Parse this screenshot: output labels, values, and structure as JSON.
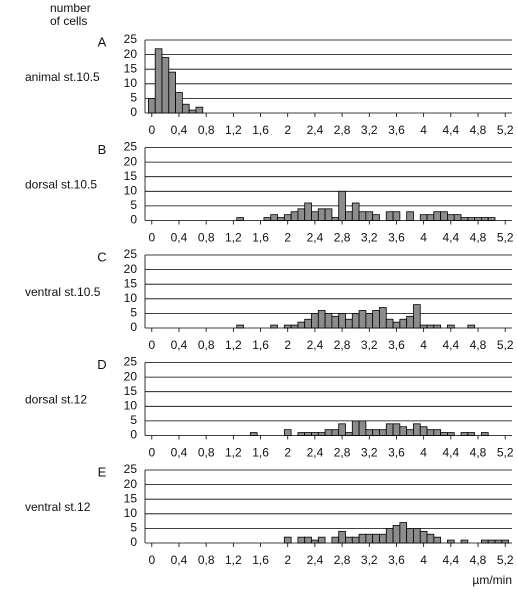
{
  "chart_data": [
    {
      "type": "bar",
      "panel": "A",
      "label": "animal st.10.5",
      "ylabel": "number of cells",
      "color": "#8c8c8c",
      "grid": true,
      "x": [
        0,
        0.1,
        0.2,
        0.3,
        0.4,
        0.5,
        0.6,
        0.7
      ],
      "values": [
        5,
        22,
        19,
        14,
        7,
        3,
        1,
        2
      ],
      "xlim": [
        -0.1,
        5.3
      ],
      "xticks": [
        0,
        {
          "value": 0.4,
          "label": "0,4"
        },
        {
          "value": 0.8,
          "label": "0,8"
        },
        {
          "value": 1.2,
          "label": "1,2"
        },
        {
          "value": 1.6,
          "label": "1,6"
        },
        2,
        {
          "value": 2.4,
          "label": "2,4"
        },
        {
          "value": 2.8,
          "label": "2,8"
        },
        {
          "value": 3.2,
          "label": "3,2"
        },
        {
          "value": 3.6,
          "label": "3,6"
        },
        4,
        {
          "value": 4.4,
          "label": "4,4"
        },
        {
          "value": 4.8,
          "label": "4,8"
        },
        {
          "value": 5.2,
          "label": "5,2"
        }
      ],
      "ylim": [
        0,
        25
      ],
      "yticks": [
        0,
        5,
        10,
        15,
        20,
        25
      ]
    },
    {
      "type": "bar",
      "panel": "B",
      "label": "dorsal st.10.5",
      "color": "#8c8c8c",
      "grid": true,
      "x": [
        1.3,
        1.7,
        1.8,
        1.9,
        2.0,
        2.1,
        2.2,
        2.3,
        2.4,
        2.5,
        2.6,
        2.7,
        2.8,
        2.9,
        3.0,
        3.1,
        3.2,
        3.3,
        3.5,
        3.6,
        3.8,
        4.0,
        4.1,
        4.2,
        4.3,
        4.4,
        4.5,
        4.6,
        4.7,
        4.8,
        4.9,
        5.0
      ],
      "values": [
        1,
        1,
        2,
        1,
        2,
        3,
        4,
        6,
        3,
        4,
        4,
        1,
        10,
        3,
        6,
        3,
        3,
        2,
        3,
        3,
        3,
        2,
        2,
        3,
        3,
        2,
        2,
        1,
        1,
        1,
        1,
        1
      ],
      "xlim": [
        -0.1,
        5.3
      ],
      "xticks": [
        0,
        {
          "value": 0.4,
          "label": "0,4"
        },
        {
          "value": 0.8,
          "label": "0,8"
        },
        {
          "value": 1.2,
          "label": "1,2"
        },
        {
          "value": 1.6,
          "label": "1,6"
        },
        2,
        {
          "value": 2.4,
          "label": "2,4"
        },
        {
          "value": 2.8,
          "label": "2,8"
        },
        {
          "value": 3.2,
          "label": "3,2"
        },
        {
          "value": 3.6,
          "label": "3,6"
        },
        4,
        {
          "value": 4.4,
          "label": "4,4"
        },
        {
          "value": 4.8,
          "label": "4,8"
        },
        {
          "value": 5.2,
          "label": "5,2"
        }
      ],
      "ylim": [
        0,
        25
      ],
      "yticks": [
        0,
        5,
        10,
        15,
        20,
        25
      ]
    },
    {
      "type": "bar",
      "panel": "C",
      "label": "ventral st.10.5",
      "color": "#8c8c8c",
      "grid": true,
      "x": [
        1.3,
        1.8,
        2.0,
        2.1,
        2.2,
        2.3,
        2.4,
        2.5,
        2.6,
        2.7,
        2.8,
        2.9,
        3.0,
        3.1,
        3.2,
        3.3,
        3.4,
        3.5,
        3.6,
        3.7,
        3.8,
        3.9,
        4.0,
        4.1,
        4.2,
        4.4,
        4.7
      ],
      "values": [
        1,
        1,
        1,
        1,
        2,
        3,
        5,
        6,
        5,
        4,
        5,
        3,
        5,
        6,
        5,
        6,
        7,
        3,
        2,
        3,
        4,
        8,
        1,
        1,
        1,
        1,
        1
      ],
      "xlim": [
        -0.1,
        5.3
      ],
      "xticks": [
        0,
        {
          "value": 0.4,
          "label": "0,4"
        },
        {
          "value": 0.8,
          "label": "0,8"
        },
        {
          "value": 1.2,
          "label": "1,2"
        },
        {
          "value": 1.6,
          "label": "1,6"
        },
        2,
        {
          "value": 2.4,
          "label": "2,4"
        },
        {
          "value": 2.8,
          "label": "2,8"
        },
        {
          "value": 3.2,
          "label": "3,2"
        },
        {
          "value": 3.6,
          "label": "3,6"
        },
        4,
        {
          "value": 4.4,
          "label": "4,4"
        },
        {
          "value": 4.8,
          "label": "4,8"
        },
        {
          "value": 5.2,
          "label": "5,2"
        }
      ],
      "ylim": [
        0,
        25
      ],
      "yticks": [
        0,
        5,
        10,
        15,
        20,
        25
      ]
    },
    {
      "type": "bar",
      "panel": "D",
      "label": "dorsal st.12",
      "color": "#8c8c8c",
      "grid": true,
      "x": [
        1.5,
        2.0,
        2.2,
        2.3,
        2.4,
        2.5,
        2.6,
        2.7,
        2.8,
        2.9,
        3.0,
        3.1,
        3.2,
        3.3,
        3.4,
        3.5,
        3.6,
        3.7,
        3.8,
        3.9,
        4.0,
        4.1,
        4.2,
        4.3,
        4.4,
        4.6,
        4.7,
        4.9
      ],
      "values": [
        1,
        2,
        1,
        1,
        1,
        1,
        2,
        2,
        4,
        1,
        5,
        5,
        2,
        2,
        2,
        4,
        4,
        3,
        2,
        4,
        3,
        2,
        2,
        1,
        1,
        1,
        1,
        1
      ],
      "xlim": [
        -0.1,
        5.3
      ],
      "xticks": [
        0,
        {
          "value": 0.4,
          "label": "0,4"
        },
        {
          "value": 0.8,
          "label": "0,8"
        },
        {
          "value": 1.2,
          "label": "1,2"
        },
        {
          "value": 1.6,
          "label": "1,6"
        },
        2,
        {
          "value": 2.4,
          "label": "2,4"
        },
        {
          "value": 2.8,
          "label": "2,8"
        },
        {
          "value": 3.2,
          "label": "3,2"
        },
        {
          "value": 3.6,
          "label": "3,6"
        },
        4,
        {
          "value": 4.4,
          "label": "4,4"
        },
        {
          "value": 4.8,
          "label": "4,8"
        },
        {
          "value": 5.2,
          "label": "5,2"
        }
      ],
      "ylim": [
        0,
        25
      ],
      "yticks": [
        0,
        5,
        10,
        15,
        20,
        25
      ]
    },
    {
      "type": "bar",
      "panel": "E",
      "label": "ventral st.12",
      "xlabel": "µm/min",
      "color": "#8c8c8c",
      "grid": true,
      "x": [
        2.0,
        2.2,
        2.3,
        2.4,
        2.5,
        2.7,
        2.8,
        2.9,
        3.0,
        3.1,
        3.2,
        3.3,
        3.4,
        3.5,
        3.6,
        3.7,
        3.8,
        3.9,
        4.0,
        4.1,
        4.2,
        4.4,
        4.6,
        4.9,
        5.0,
        5.1,
        5.2
      ],
      "values": [
        2,
        2,
        2,
        1,
        2,
        2,
        4,
        2,
        2,
        3,
        3,
        3,
        3,
        5,
        6,
        7,
        5,
        5,
        4,
        3,
        2,
        1,
        1,
        1,
        1,
        1,
        1
      ],
      "xlim": [
        -0.1,
        5.3
      ],
      "xticks": [
        0,
        {
          "value": 0.4,
          "label": "0,4"
        },
        {
          "value": 0.8,
          "label": "0,8"
        },
        {
          "value": 1.2,
          "label": "1,2"
        },
        {
          "value": 1.6,
          "label": "1,6"
        },
        2,
        {
          "value": 2.4,
          "label": "2,4"
        },
        {
          "value": 2.8,
          "label": "2,8"
        },
        {
          "value": 3.2,
          "label": "3,2"
        },
        {
          "value": 3.6,
          "label": "3,6"
        },
        4,
        {
          "value": 4.4,
          "label": "4,4"
        },
        {
          "value": 4.8,
          "label": "4,8"
        },
        {
          "value": 5.2,
          "label": "5,2"
        }
      ],
      "ylim": [
        0,
        25
      ],
      "yticks": [
        0,
        5,
        10,
        15,
        20,
        25
      ]
    }
  ]
}
